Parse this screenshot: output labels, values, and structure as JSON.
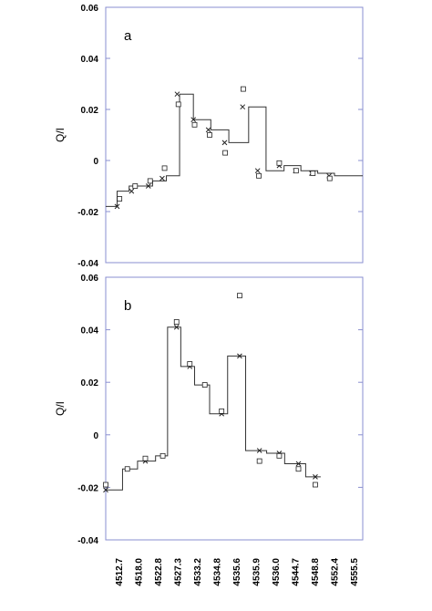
{
  "chart_data": [
    {
      "type": "scatter",
      "panel_label": "a",
      "ylabel": "Q/I",
      "ylim": [
        -0.04,
        0.06
      ],
      "yticks": [
        -0.04,
        -0.02,
        0,
        0.02,
        0.04,
        0.06
      ],
      "ytick_labels": [
        "-0.04",
        "-0.02",
        "0",
        "0.02",
        "0.04",
        "0.06"
      ],
      "xlim": [
        4512.7,
        4555.5
      ],
      "step": {
        "levels": [
          {
            "x0": 4512.7,
            "x1": 4514.6,
            "y": -0.018
          },
          {
            "x0": 4514.6,
            "x1": 4516.6,
            "y": -0.012
          },
          {
            "x0": 4516.6,
            "x1": 4518.0,
            "y": -0.01
          },
          {
            "x0": 4518.0,
            "x1": 4520.5,
            "y": -0.01
          },
          {
            "x0": 4520.5,
            "x1": 4522.8,
            "y": -0.008
          },
          {
            "x0": 4522.8,
            "x1": 4525.0,
            "y": -0.006
          },
          {
            "x0": 4525.0,
            "x1": 4527.3,
            "y": 0.026
          },
          {
            "x0": 4527.3,
            "x1": 4530.2,
            "y": 0.016
          },
          {
            "x0": 4530.2,
            "x1": 4533.2,
            "y": 0.012
          },
          {
            "x0": 4533.2,
            "x1": 4536.5,
            "y": 0.007
          },
          {
            "x0": 4536.5,
            "x1": 4539.4,
            "y": 0.021
          },
          {
            "x0": 4539.4,
            "x1": 4542.4,
            "y": -0.004
          },
          {
            "x0": 4542.4,
            "x1": 4545.2,
            "y": -0.002
          },
          {
            "x0": 4545.2,
            "x1": 4548.0,
            "y": -0.004
          },
          {
            "x0": 4548.0,
            "x1": 4550.8,
            "y": -0.005
          },
          {
            "x0": 4550.8,
            "x1": 4555.5,
            "y": -0.006
          }
        ]
      },
      "series": [
        {
          "marker": "x",
          "x": [
            4514.6,
            4517.0,
            4519.8,
            4522.1,
            4524.6,
            4527.3,
            4529.8,
            4532.5,
            4535.5,
            4538.0,
            4541.6,
            4544.3,
            4547.0,
            4549.9
          ],
          "y": [
            -0.018,
            -0.012,
            -0.01,
            -0.007,
            0.026,
            0.016,
            0.012,
            0.007,
            0.021,
            -0.004,
            -0.002,
            -0.004,
            -0.005,
            -0.006
          ]
        },
        {
          "marker": "square",
          "x": [
            4515.0,
            4517.6,
            4520.1,
            4522.5,
            4524.8,
            4527.5,
            4530.0,
            4532.6,
            4535.6,
            4538.2,
            4541.6,
            4544.4,
            4547.2,
            4550.0
          ],
          "y": [
            -0.015,
            -0.01,
            -0.008,
            -0.003,
            0.022,
            0.014,
            0.01,
            0.003,
            0.028,
            -0.006,
            -0.001,
            -0.004,
            -0.005,
            -0.007
          ]
        }
      ]
    },
    {
      "type": "scatter",
      "panel_label": "b",
      "ylabel": "Q/I",
      "ylim": [
        -0.04,
        0.06
      ],
      "yticks": [
        -0.04,
        -0.02,
        0,
        0.02,
        0.04,
        0.06
      ],
      "ytick_labels": [
        "-0.04",
        "-0.02",
        "0",
        "0.02",
        "0.04",
        "0.06"
      ],
      "xlim": [
        4512.7,
        4555.5
      ],
      "categories": [
        "4512.7",
        "4518.0",
        "4522.8",
        "4527.3",
        "4533.2",
        "4534.8",
        "4535.6",
        "4535.9",
        "4536.0",
        "4544.7",
        "4548.8",
        "4552.4",
        "4555.5"
      ],
      "step": {
        "levels": [
          {
            "x0": 4512.7,
            "x1": 4515.5,
            "y": -0.021
          },
          {
            "x0": 4515.5,
            "x1": 4518.0,
            "y": -0.013
          },
          {
            "x0": 4518.0,
            "x1": 4521.0,
            "y": -0.01
          },
          {
            "x0": 4521.0,
            "x1": 4523.0,
            "y": -0.008
          },
          {
            "x0": 4523.0,
            "x1": 4525.2,
            "y": 0.041
          },
          {
            "x0": 4525.2,
            "x1": 4527.5,
            "y": 0.026
          },
          {
            "x0": 4527.5,
            "x1": 4530.0,
            "y": 0.019
          },
          {
            "x0": 4530.0,
            "x1": 4533.0,
            "y": 0.008
          },
          {
            "x0": 4533.0,
            "x1": 4536.0,
            "y": 0.03
          },
          {
            "x0": 4536.0,
            "x1": 4539.5,
            "y": -0.006
          },
          {
            "x0": 4539.5,
            "x1": 4542.5,
            "y": -0.007
          },
          {
            "x0": 4542.5,
            "x1": 4546.0,
            "y": -0.011
          },
          {
            "x0": 4546.0,
            "x1": 4548.5,
            "y": -0.016
          }
        ]
      },
      "series": [
        {
          "marker": "x",
          "x": [
            4512.7,
            4516.3,
            4519.3,
            4522.2,
            4524.5,
            4526.7,
            4529.2,
            4532.0,
            4535.0,
            4538.3,
            4541.6,
            4544.8,
            4547.6
          ],
          "y": [
            -0.021,
            -0.013,
            -0.01,
            -0.008,
            0.041,
            0.026,
            0.019,
            0.008,
            0.03,
            -0.006,
            -0.007,
            -0.011,
            -0.016
          ]
        },
        {
          "marker": "square",
          "x": [
            4512.7,
            4516.3,
            4519.3,
            4522.2,
            4524.5,
            4526.7,
            4529.2,
            4532.0,
            4535.0,
            4538.3,
            4541.6,
            4544.8,
            4547.6
          ],
          "y": [
            -0.019,
            -0.013,
            -0.009,
            -0.008,
            0.043,
            0.027,
            0.019,
            0.009,
            0.053,
            -0.01,
            -0.008,
            -0.013,
            -0.019
          ]
        }
      ]
    }
  ]
}
